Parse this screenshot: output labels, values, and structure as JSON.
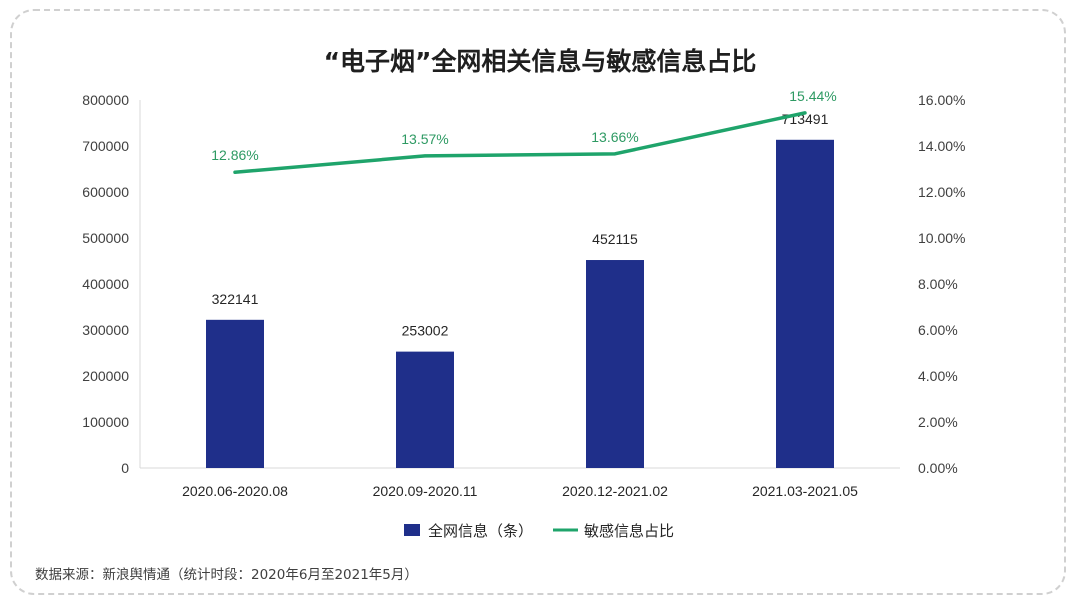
{
  "chart_data": {
    "type": "bar",
    "title": "“电子烟”全网相关信息与敏感信息占比",
    "categories": [
      "2020.06-2020.08",
      "2020.09-2020.11",
      "2020.12-2021.02",
      "2021.03-2021.05"
    ],
    "series": [
      {
        "name": "全网信息（条）",
        "type": "bar",
        "axis": "left",
        "values": [
          322141,
          253002,
          452115,
          713491
        ],
        "labels": [
          "322141",
          "253002",
          "452115",
          "713491"
        ],
        "color": "#1f2f8a"
      },
      {
        "name": "敏感信息占比",
        "type": "line",
        "axis": "right",
        "values": [
          12.86,
          13.57,
          13.66,
          15.44
        ],
        "labels": [
          "12.86%",
          "13.57%",
          "13.66%",
          "15.44%"
        ],
        "color": "#1fa46b"
      }
    ],
    "y_left": {
      "range": [
        0,
        800000
      ],
      "ticks": [
        "0",
        "100000",
        "200000",
        "300000",
        "400000",
        "500000",
        "600000",
        "700000",
        "800000"
      ]
    },
    "y_right": {
      "range": [
        0,
        16
      ],
      "ticks": [
        "0.00%",
        "2.00%",
        "4.00%",
        "6.00%",
        "8.00%",
        "10.00%",
        "12.00%",
        "14.00%",
        "16.00%"
      ]
    },
    "grid": false,
    "legend_position": "bottom-center"
  },
  "source": "数据来源：新浪舆情通（统计时段：2020年6月至2021年5月）"
}
